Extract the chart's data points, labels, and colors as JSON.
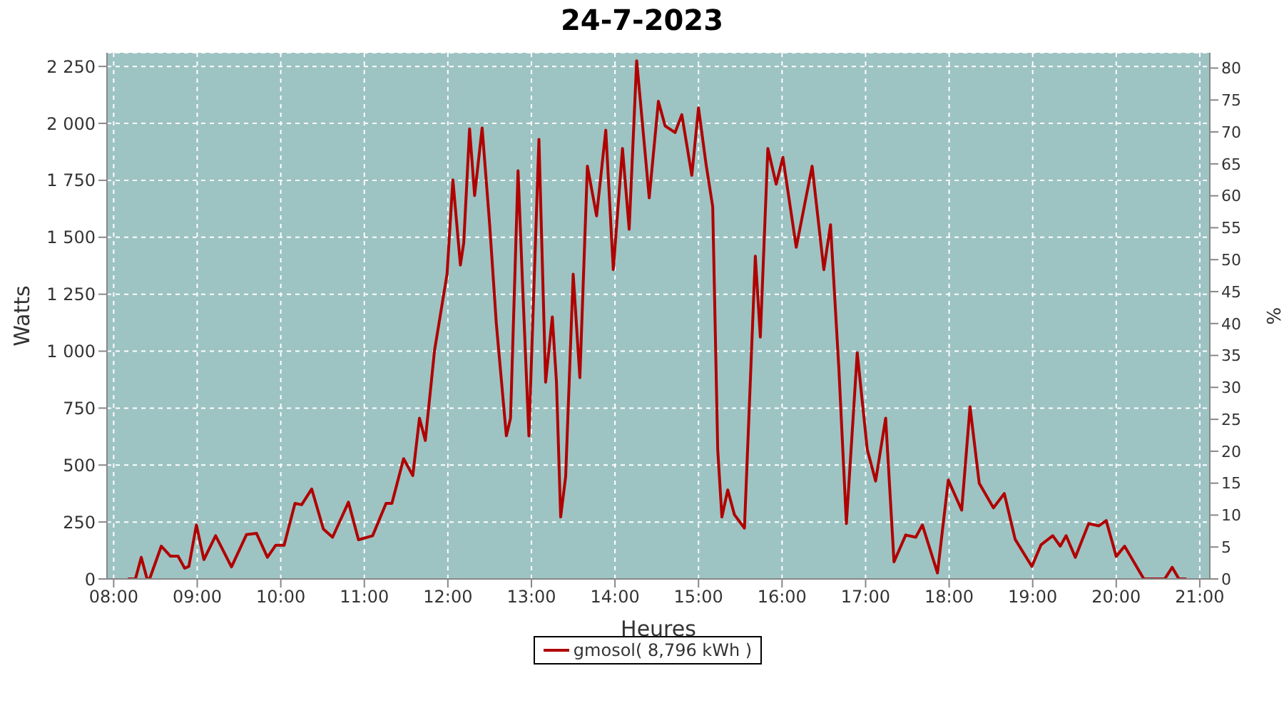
{
  "chart_data": {
    "type": "line",
    "title": "24-7-2023",
    "xlabel": "Heures",
    "ylabel": "Watts",
    "y2label": "%",
    "x": [
      8.17,
      8.26,
      8.33,
      8.4,
      8.43,
      8.57,
      8.68,
      8.77,
      8.85,
      8.9,
      8.99,
      9.08,
      9.22,
      9.41,
      9.59,
      9.71,
      9.84,
      9.94,
      10.04,
      10.17,
      10.25,
      10.37,
      10.51,
      10.62,
      10.81,
      10.93,
      11.1,
      11.26,
      11.33,
      11.47,
      11.58,
      11.66,
      11.73,
      11.84,
      11.99,
      12.06,
      12.15,
      12.19,
      12.26,
      12.32,
      12.41,
      12.5,
      12.58,
      12.7,
      12.75,
      12.84,
      12.9,
      12.97,
      13.01,
      13.09,
      13.17,
      13.25,
      13.3,
      13.35,
      13.41,
      13.5,
      13.58,
      13.67,
      13.78,
      13.89,
      13.98,
      14.09,
      14.17,
      14.26,
      14.41,
      14.52,
      14.6,
      14.72,
      14.8,
      14.92,
      15.0,
      15.09,
      15.17,
      15.23,
      15.28,
      15.35,
      15.43,
      15.55,
      15.68,
      15.74,
      15.83,
      15.93,
      16.01,
      16.17,
      16.36,
      16.5,
      16.58,
      16.68,
      16.77,
      16.9,
      17.02,
      17.12,
      17.24,
      17.34,
      17.48,
      17.6,
      17.68,
      17.86,
      17.99,
      18.15,
      18.25,
      18.36,
      18.53,
      18.66,
      18.79,
      18.99,
      19.1,
      19.24,
      19.33,
      19.4,
      19.51,
      19.67,
      19.79,
      19.88,
      20.0,
      20.1,
      20.33,
      20.58,
      20.67,
      20.75,
      20.84
    ],
    "series": [
      {
        "name": "gmosol( 8,796 kWh )",
        "color": "#b00000",
        "values": [
          0,
          0,
          95,
          0,
          0,
          144,
          100,
          100,
          47,
          55,
          237,
          85,
          190,
          53,
          195,
          200,
          95,
          148,
          148,
          332,
          326,
          395,
          219,
          183,
          337,
          172,
          190,
          332,
          332,
          528,
          454,
          706,
          608,
          1002,
          1338,
          1752,
          1378,
          1476,
          1976,
          1683,
          1980,
          1557,
          1121,
          628,
          706,
          1792,
          1239,
          628,
          1062,
          1930,
          864,
          1150,
          864,
          272,
          450,
          1338,
          884,
          1812,
          1594,
          1970,
          1358,
          1890,
          1535,
          2275,
          1673,
          2097,
          1989,
          1960,
          2038,
          1772,
          2068,
          1822,
          1634,
          568,
          272,
          391,
          282,
          223,
          1417,
          1062,
          1890,
          1733,
          1851,
          1456,
          1812,
          1358,
          1555,
          924,
          243,
          993,
          568,
          430,
          706,
          75,
          193,
          183,
          237,
          26,
          434,
          302,
          756,
          420,
          312,
          375,
          174,
          55,
          150,
          190,
          144,
          190,
          95,
          243,
          233,
          256,
          99,
          144,
          0,
          0,
          51,
          0,
          0
        ]
      }
    ],
    "xlim": [
      7.92,
      21.12
    ],
    "xticks": [
      {
        "value": 8,
        "label": "08:00"
      },
      {
        "value": 9,
        "label": "09:00"
      },
      {
        "value": 10,
        "label": "10:00"
      },
      {
        "value": 11,
        "label": "11:00"
      },
      {
        "value": 12,
        "label": "12:00"
      },
      {
        "value": 13,
        "label": "13:00"
      },
      {
        "value": 14,
        "label": "14:00"
      },
      {
        "value": 15,
        "label": "15:00"
      },
      {
        "value": 16,
        "label": "16:00"
      },
      {
        "value": 17,
        "label": "17:00"
      },
      {
        "value": 18,
        "label": "18:00"
      },
      {
        "value": 19,
        "label": "19:00"
      },
      {
        "value": 20,
        "label": "20:00"
      },
      {
        "value": 21,
        "label": "21:00"
      }
    ],
    "ylim": [
      0,
      2310
    ],
    "yticks": [
      0,
      250,
      500,
      750,
      {
        "value": 1000,
        "label": "1 000"
      },
      {
        "value": 1250,
        "label": "1 250"
      },
      {
        "value": 1500,
        "label": "1 500"
      },
      {
        "value": 1750,
        "label": "1 750"
      },
      {
        "value": 2000,
        "label": "2 000"
      },
      {
        "value": 2250,
        "label": "2 250"
      }
    ],
    "y2lim": [
      0,
      82.4
    ],
    "y2ticks": [
      0,
      5,
      10,
      15,
      20,
      25,
      30,
      35,
      40,
      45,
      50,
      55,
      60,
      65,
      70,
      75,
      80
    ],
    "grid": true,
    "legend": "bottom",
    "marker": "none",
    "line_style": "solid"
  }
}
